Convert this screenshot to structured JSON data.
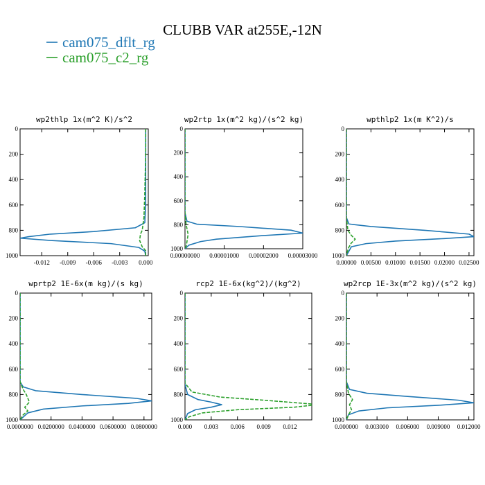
{
  "figure": {
    "title": "CLUBB VAR at255E,-12N",
    "legend": [
      {
        "label": "cam075_dflt_rg",
        "color": "#1f77b4"
      },
      {
        "label": "cam075_c2_rg",
        "color": "#2ca02c"
      }
    ]
  },
  "chart_data": [
    {
      "type": "line",
      "title": "wp2thlp   1x(m^2 K)/s^2",
      "xlim": [
        -0.0145,
        0.0003
      ],
      "ylim": [
        1000,
        0
      ],
      "xticks": [
        -0.012,
        -0.009,
        -0.006,
        -0.003,
        0.0
      ],
      "xtick_labels": [
        "-0.012",
        "-0.009",
        "-0.006",
        "-0.003",
        "0.000"
      ],
      "yticks": [
        0,
        200,
        400,
        600,
        800,
        1000
      ],
      "ytick_labels": [
        "0",
        "200",
        "400",
        "600",
        "800",
        "1000"
      ],
      "series": [
        {
          "name": "cam075_dflt_rg",
          "color": "#1f77b4",
          "dashed": false,
          "points": [
            [
              0,
              0
            ],
            [
              0,
              600
            ],
            [
              -0.0001,
              740
            ],
            [
              -0.0012,
              780
            ],
            [
              -0.006,
              810
            ],
            [
              -0.011,
              830
            ],
            [
              -0.0135,
              850
            ],
            [
              -0.0145,
              862
            ],
            [
              -0.011,
              880
            ],
            [
              -0.004,
              905
            ],
            [
              -0.0008,
              935
            ],
            [
              -0.0001,
              965
            ],
            [
              0,
              1000
            ]
          ]
        },
        {
          "name": "cam075_c2_rg",
          "color": "#2ca02c",
          "dashed": true,
          "points": [
            [
              0,
              0
            ],
            [
              0,
              200
            ],
            [
              -0.0001,
              500
            ],
            [
              -0.0002,
              700
            ],
            [
              -0.0004,
              800
            ],
            [
              -0.0006,
              830
            ],
            [
              -0.0007,
              880
            ],
            [
              -0.0004,
              930
            ],
            [
              0,
              960
            ],
            [
              0,
              1000
            ]
          ]
        }
      ]
    },
    {
      "type": "line",
      "title": "wp2rtp   1x(m^2 kg)/(s^2 kg)",
      "xlim": [
        0,
        3e-05
      ],
      "ylim": [
        1000,
        0
      ],
      "xticks": [
        0,
        1e-05,
        2e-05,
        3e-05
      ],
      "xtick_labels": [
        "0.00000000",
        "0.00001000",
        "0.00002000",
        "0.00003000"
      ],
      "yticks": [
        0,
        200,
        400,
        600,
        800,
        1000
      ],
      "ytick_labels": [
        "0",
        "200",
        "400",
        "600",
        "800",
        "1000"
      ],
      "series": [
        {
          "name": "cam075_dflt_rg",
          "color": "#1f77b4",
          "dashed": false,
          "points": [
            [
              0,
              0
            ],
            [
              0,
              700
            ],
            [
              5e-07,
              770
            ],
            [
              3e-06,
              795
            ],
            [
              1.4e-05,
              815
            ],
            [
              2.7e-05,
              845
            ],
            [
              3e-05,
              870
            ],
            [
              2e-05,
              890
            ],
            [
              8e-06,
              920
            ],
            [
              4e-06,
              940
            ],
            [
              1e-06,
              970
            ],
            [
              0,
              1000
            ]
          ]
        },
        {
          "name": "cam075_c2_rg",
          "color": "#2ca02c",
          "dashed": true,
          "points": [
            [
              0,
              0
            ],
            [
              0,
              700
            ],
            [
              3e-07,
              800
            ],
            [
              8e-07,
              880
            ],
            [
              5e-07,
              940
            ],
            [
              3e-07,
              980
            ],
            [
              0,
              1000
            ]
          ]
        }
      ]
    },
    {
      "type": "line",
      "title": "wpthlp2   1x(m K^2)/s",
      "xlim": [
        0,
        0.026
      ],
      "ylim": [
        1000,
        0
      ],
      "xticks": [
        0,
        0.005,
        0.01,
        0.015,
        0.02,
        0.025
      ],
      "xtick_labels": [
        "0.00000",
        "0.00500",
        "0.01000",
        "0.01500",
        "0.02000",
        "0.02500"
      ],
      "yticks": [
        0,
        200,
        400,
        600,
        800,
        1000
      ],
      "ytick_labels": [
        "0",
        "200",
        "400",
        "600",
        "800",
        "1000"
      ],
      "series": [
        {
          "name": "cam075_dflt_rg",
          "color": "#1f77b4",
          "dashed": false,
          "points": [
            [
              0,
              0
            ],
            [
              0,
              700
            ],
            [
              0.0005,
              750
            ],
            [
              0.005,
              770
            ],
            [
              0.016,
              800
            ],
            [
              0.025,
              830
            ],
            [
              0.026,
              850
            ],
            [
              0.02,
              865
            ],
            [
              0.01,
              885
            ],
            [
              0.004,
              905
            ],
            [
              0.001,
              930
            ],
            [
              0,
              1000
            ]
          ]
        },
        {
          "name": "cam075_c2_rg",
          "color": "#2ca02c",
          "dashed": true,
          "points": [
            [
              0,
              0
            ],
            [
              0,
              700
            ],
            [
              0.0003,
              800
            ],
            [
              0.001,
              840
            ],
            [
              0.0018,
              870
            ],
            [
              0.001,
              900
            ],
            [
              0.0004,
              940
            ],
            [
              0,
              1000
            ]
          ]
        }
      ]
    },
    {
      "type": "line",
      "title": "wprtp2   1E-6x(m kg)/(s kg)",
      "xlim": [
        0,
        0.085
      ],
      "ylim": [
        1000,
        0
      ],
      "xticks": [
        0,
        0.02,
        0.04,
        0.06,
        0.08
      ],
      "xtick_labels": [
        "0.0000000",
        "0.0200000",
        "0.0400000",
        "0.0600000",
        "0.0800000"
      ],
      "yticks": [
        0,
        200,
        400,
        600,
        800,
        1000
      ],
      "ytick_labels": [
        "0",
        "200",
        "400",
        "600",
        "800",
        "1000"
      ],
      "series": [
        {
          "name": "cam075_dflt_rg",
          "color": "#1f77b4",
          "dashed": false,
          "points": [
            [
              0,
              0
            ],
            [
              0,
              700
            ],
            [
              0.002,
              740
            ],
            [
              0.01,
              770
            ],
            [
              0.04,
              800
            ],
            [
              0.075,
              830
            ],
            [
              0.085,
              850
            ],
            [
              0.07,
              870
            ],
            [
              0.04,
              890
            ],
            [
              0.015,
              915
            ],
            [
              0.005,
              945
            ],
            [
              0,
              1000
            ]
          ]
        },
        {
          "name": "cam075_c2_rg",
          "color": "#2ca02c",
          "dashed": true,
          "points": [
            [
              0,
              0
            ],
            [
              0,
              700
            ],
            [
              0.002,
              760
            ],
            [
              0.004,
              800
            ],
            [
              0.006,
              860
            ],
            [
              0.003,
              900
            ],
            [
              0.005,
              930
            ],
            [
              0.002,
              960
            ],
            [
              0,
              1000
            ]
          ]
        }
      ]
    },
    {
      "type": "line",
      "title": "rcp2   1E-6x(kg^2)/(kg^2)",
      "xlim": [
        0,
        0.0145
      ],
      "ylim": [
        1000,
        0
      ],
      "xticks": [
        0,
        0.003,
        0.006,
        0.009,
        0.012
      ],
      "xtick_labels": [
        "0.000",
        "0.003",
        "0.006",
        "0.009",
        "0.012"
      ],
      "yticks": [
        0,
        200,
        400,
        600,
        800,
        1000
      ],
      "ytick_labels": [
        "0",
        "200",
        "400",
        "600",
        "800",
        "1000"
      ],
      "series": [
        {
          "name": "cam075_dflt_rg",
          "color": "#1f77b4",
          "dashed": false,
          "points": [
            [
              0,
              0
            ],
            [
              0,
              720
            ],
            [
              0.0003,
              800
            ],
            [
              0.0015,
              840
            ],
            [
              0.003,
              860
            ],
            [
              0.0042,
              880
            ],
            [
              0.003,
              900
            ],
            [
              0.0012,
              920
            ],
            [
              0.0003,
              950
            ],
            [
              0,
              1000
            ]
          ]
        },
        {
          "name": "cam075_c2_rg",
          "color": "#2ca02c",
          "dashed": true,
          "points": [
            [
              0,
              0
            ],
            [
              0,
              710
            ],
            [
              0.0008,
              780
            ],
            [
              0.004,
              820
            ],
            [
              0.01,
              850
            ],
            [
              0.0145,
              875
            ],
            [
              0.0145,
              885
            ],
            [
              0.0125,
              900
            ],
            [
              0.006,
              920
            ],
            [
              0.002,
              945
            ],
            [
              0.0005,
              975
            ],
            [
              0,
              1000
            ]
          ]
        }
      ]
    },
    {
      "type": "line",
      "title": "wp2rcp   1E-3x(m^2 kg)/(s^2 kg)",
      "xlim": [
        0,
        0.0125
      ],
      "ylim": [
        1000,
        0
      ],
      "xticks": [
        0,
        0.003,
        0.006,
        0.009,
        0.012
      ],
      "xtick_labels": [
        "0.000000",
        "0.003000",
        "0.006000",
        "0.009000",
        "0.012000"
      ],
      "yticks": [
        0,
        200,
        400,
        600,
        800,
        1000
      ],
      "ytick_labels": [
        "0",
        "200",
        "400",
        "600",
        "800",
        "1000"
      ],
      "series": [
        {
          "name": "cam075_dflt_rg",
          "color": "#1f77b4",
          "dashed": false,
          "points": [
            [
              0,
              0
            ],
            [
              0,
              700
            ],
            [
              0.0003,
              760
            ],
            [
              0.002,
              790
            ],
            [
              0.006,
              815
            ],
            [
              0.011,
              845
            ],
            [
              0.0125,
              865
            ],
            [
              0.009,
              885
            ],
            [
              0.004,
              905
            ],
            [
              0.0012,
              930
            ],
            [
              0.0002,
              960
            ],
            [
              0,
              1000
            ]
          ]
        },
        {
          "name": "cam075_c2_rg",
          "color": "#2ca02c",
          "dashed": true,
          "points": [
            [
              0,
              0
            ],
            [
              0,
              700
            ],
            [
              0.0002,
              790
            ],
            [
              0.0006,
              840
            ],
            [
              0.0003,
              880
            ],
            [
              0.0005,
              920
            ],
            [
              0.0002,
              960
            ],
            [
              0,
              1000
            ]
          ]
        }
      ]
    }
  ]
}
